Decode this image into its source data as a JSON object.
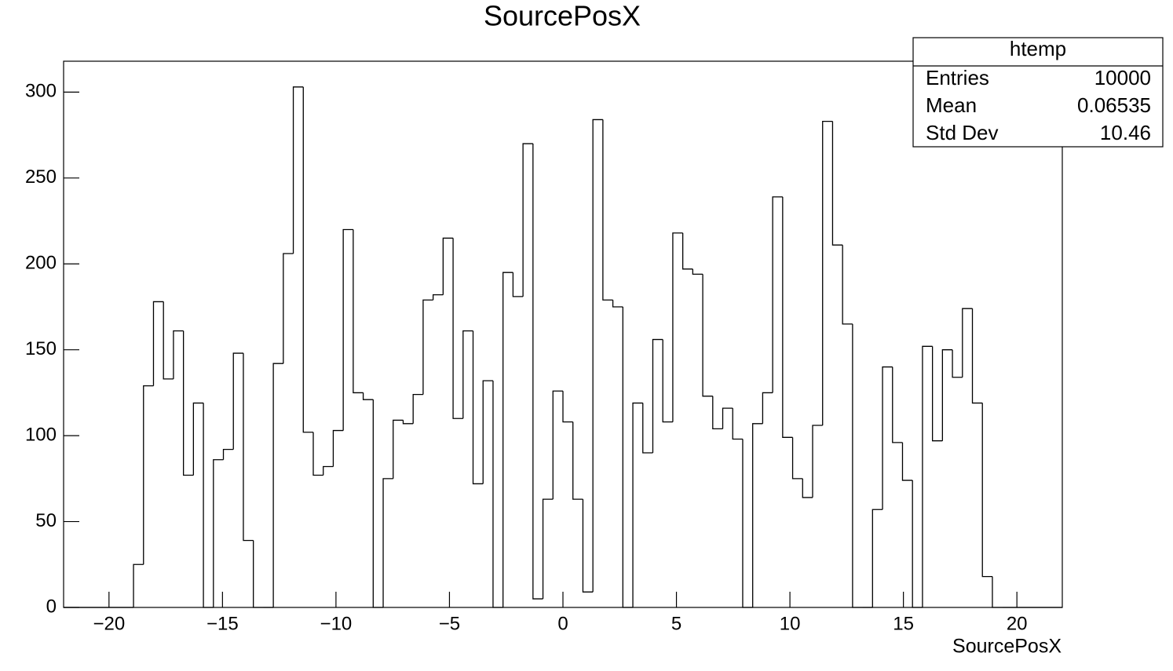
{
  "chart_data": {
    "type": "histogram",
    "title": "SourcePosX",
    "x_label": "SourcePosX",
    "bins": [
      -22,
      -21.56,
      -21.12,
      -20.68,
      -20.24,
      -19.8,
      -19.36,
      -18.92,
      -18.48,
      -18.04,
      -17.6,
      -17.16,
      -16.72,
      -16.28,
      -15.84,
      -15.4,
      -14.96,
      -14.52,
      -14.08,
      -13.64,
      -13.2,
      -12.76,
      -12.32,
      -11.88,
      -11.44,
      -11,
      -10.56,
      -10.12,
      -9.68,
      -9.24,
      -8.8,
      -8.36,
      -7.92,
      -7.48,
      -7.04,
      -6.6,
      -6.16,
      -5.72,
      -5.28,
      -4.84,
      -4.4,
      -3.96,
      -3.52,
      -3.08,
      -2.64,
      -2.2,
      -1.76,
      -1.32,
      -0.88,
      -0.44,
      0,
      0.44,
      0.88,
      1.32,
      1.76,
      2.2,
      2.64,
      3.08,
      3.52,
      3.96,
      4.4,
      4.84,
      5.28,
      5.72,
      6.16,
      6.6,
      7.04,
      7.48,
      7.92,
      8.36,
      8.8,
      9.24,
      9.68,
      10.12,
      10.56,
      11,
      11.44,
      11.88,
      12.32,
      12.76,
      13.2,
      13.64,
      14.08,
      14.52,
      14.96,
      15.4,
      15.84,
      16.28,
      16.72,
      17.16,
      17.6,
      18.04,
      18.48,
      18.92,
      19.36,
      19.8,
      20.24,
      20.68,
      21.12,
      21.56,
      22
    ],
    "values": [
      0,
      0,
      0,
      0,
      0,
      0,
      0,
      25,
      129,
      178,
      133,
      161,
      77,
      119,
      0,
      86,
      92,
      148,
      39,
      0,
      0,
      142,
      206,
      303,
      102,
      77,
      82,
      103,
      220,
      125,
      121,
      0,
      75,
      109,
      107,
      124,
      179,
      182,
      215,
      110,
      161,
      72,
      132,
      0,
      195,
      181,
      270,
      5,
      63,
      126,
      108,
      63,
      9,
      284,
      179,
      175,
      0,
      119,
      90,
      156,
      108,
      218,
      197,
      194,
      123,
      104,
      116,
      98,
      0,
      107,
      125,
      239,
      99,
      75,
      64,
      106,
      283,
      211,
      165,
      0,
      0,
      57,
      140,
      96,
      74,
      0,
      152,
      97,
      150,
      134,
      174,
      119,
      18,
      0,
      0,
      0,
      0,
      0,
      0,
      0
    ],
    "color": "#000000",
    "xlim": [
      -22,
      22
    ],
    "ylim": [
      0,
      318
    ],
    "xticks": [
      {
        "value": -20,
        "label": "−20"
      },
      {
        "value": -15,
        "label": "−15"
      },
      {
        "value": -10,
        "label": "−10"
      },
      {
        "value": -5,
        "label": "−5"
      },
      0,
      5,
      10,
      15,
      20
    ],
    "yticks": [
      0,
      50,
      100,
      150,
      200,
      250,
      300
    ],
    "stats": {
      "title": "htemp",
      "rows": [
        {
          "label": "Entries",
          "value": 10000
        },
        {
          "label": "Mean",
          "value": 0.06535
        },
        {
          "label": "Std Dev",
          "value": 10.46
        }
      ]
    }
  }
}
